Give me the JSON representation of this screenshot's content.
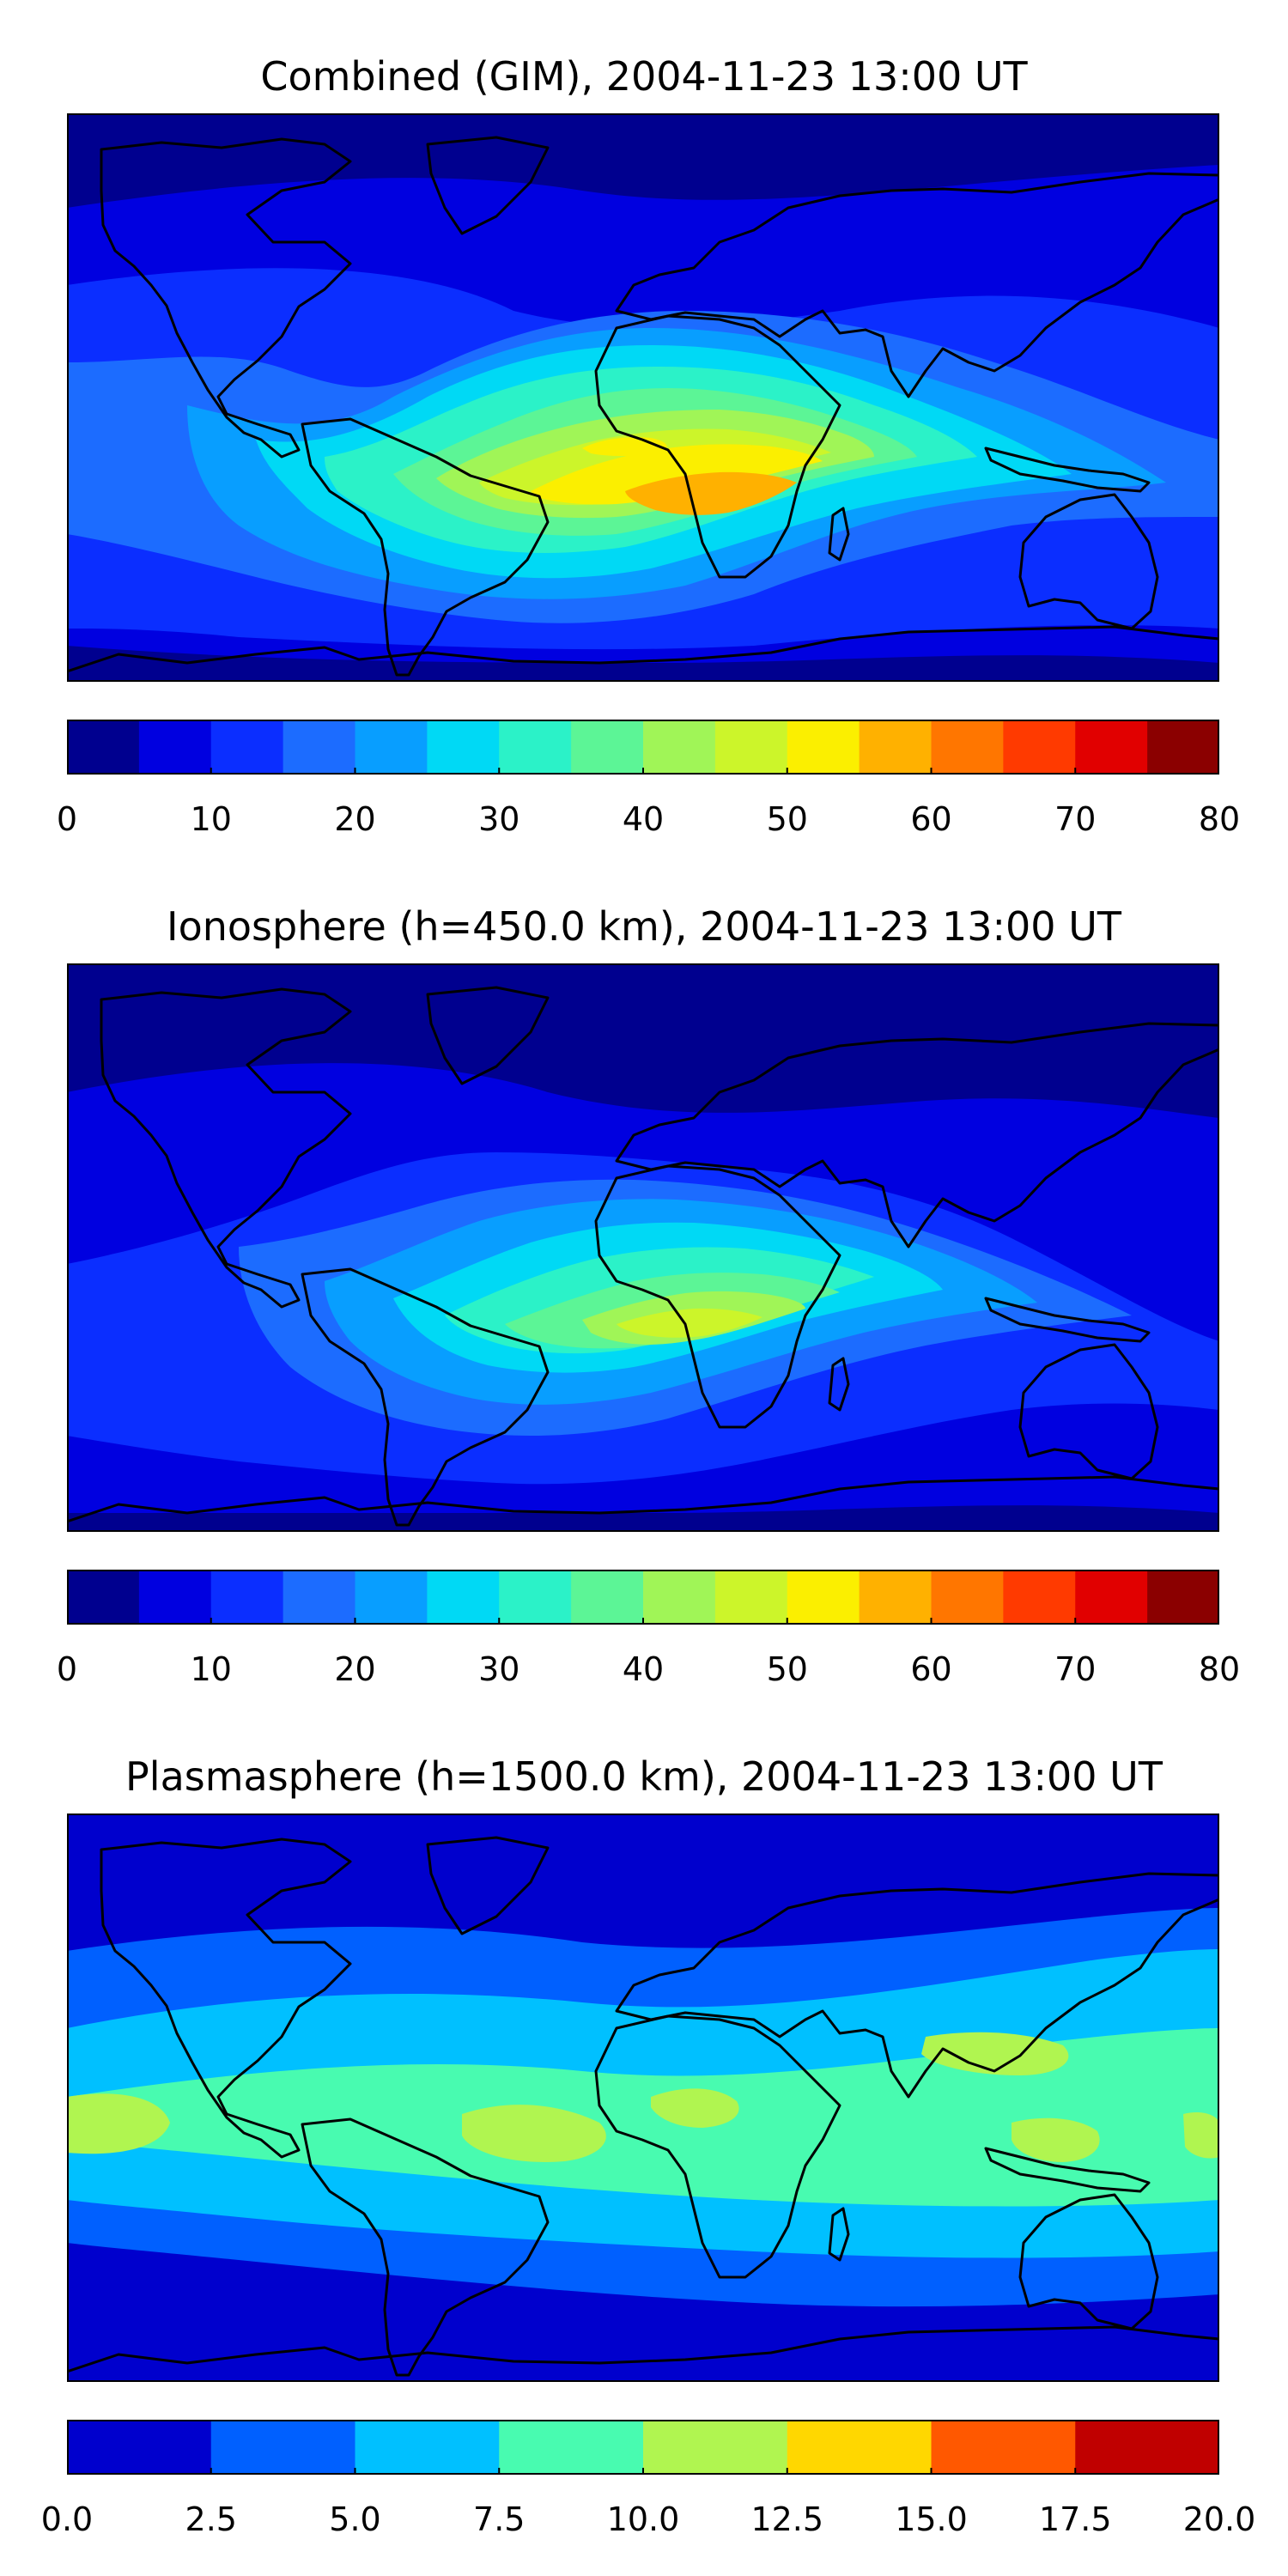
{
  "chart_data": [
    {
      "type": "heatmap",
      "title": "Combined (GIM), 2004-11-23 13:00 UT",
      "projection": "plate carree world map with coastlines",
      "colormap": "jet",
      "colorbar": {
        "orientation": "horizontal",
        "range": [
          0,
          80
        ],
        "levels": [
          0,
          5,
          10,
          15,
          20,
          25,
          30,
          35,
          40,
          45,
          50,
          55,
          60,
          65,
          70,
          75,
          80
        ],
        "tick_labels": [
          "0",
          "10",
          "20",
          "30",
          "40",
          "50",
          "60",
          "70",
          "80"
        ],
        "colors": [
          "#00008f",
          "#0000e0",
          "#0b2eff",
          "#1c6cff",
          "#089eff",
          "#00d9f5",
          "#2bf2c8",
          "#5cf596",
          "#a0f557",
          "#ccf52a",
          "#fbef00",
          "#ffb100",
          "#ff7600",
          "#ff3a00",
          "#e10000",
          "#8b0000"
        ]
      },
      "features": [
        {
          "region": "Polar caps",
          "level": 0
        },
        {
          "region": "Mid latitudes",
          "level": 10
        },
        {
          "region": "Low-latitude band over Atlantic and Indian Ocean",
          "level": 30
        },
        {
          "region": "Over Africa and equatorial Atlantic",
          "level": 50
        },
        {
          "region": "Peak over central-southern Africa",
          "level": 55
        }
      ]
    },
    {
      "type": "heatmap",
      "title": "Ionosphere  (h=450.0 km), 2004-11-23 13:00 UT",
      "projection": "plate carree world map with coastlines",
      "colormap": "jet",
      "colorbar": {
        "orientation": "horizontal",
        "range": [
          0,
          80
        ],
        "levels": [
          0,
          5,
          10,
          15,
          20,
          25,
          30,
          35,
          40,
          45,
          50,
          55,
          60,
          65,
          70,
          75,
          80
        ],
        "tick_labels": [
          "0",
          "10",
          "20",
          "30",
          "40",
          "50",
          "60",
          "70",
          "80"
        ],
        "colors": [
          "#00008f",
          "#0000e0",
          "#0b2eff",
          "#1c6cff",
          "#089eff",
          "#00d9f5",
          "#2bf2c8",
          "#5cf596",
          "#a0f557",
          "#ccf52a",
          "#fbef00",
          "#ffb100",
          "#ff7600",
          "#ff3a00",
          "#e10000",
          "#8b0000"
        ]
      },
      "features": [
        {
          "region": "Polar caps and Pacific night side",
          "level": 0
        },
        {
          "region": "Mid latitudes",
          "level": 10
        },
        {
          "region": "Low-latitude band",
          "level": 25
        },
        {
          "region": "Over Africa",
          "level": 45
        },
        {
          "region": "Peak over southern Africa",
          "level": 50
        }
      ]
    },
    {
      "type": "heatmap",
      "title": "Plasmasphere (h=1500.0 km), 2004-11-23 13:00 UT",
      "projection": "plate carree world map with coastlines",
      "colormap": "jet",
      "colorbar": {
        "orientation": "horizontal",
        "range": [
          0.0,
          20.0
        ],
        "levels": [
          0.0,
          2.5,
          5.0,
          7.5,
          10.0,
          12.5,
          15.0,
          17.5,
          20.0
        ],
        "tick_labels": [
          "0.0",
          "2.5",
          "5.0",
          "7.5",
          "10.0",
          "12.5",
          "15.0",
          "17.5",
          "20.0"
        ],
        "colors": [
          "#0000cd",
          "#0060ff",
          "#00c0ff",
          "#48fbb0",
          "#b0f550",
          "#ffd700",
          "#ff5800",
          "#c00000"
        ]
      },
      "features": [
        {
          "region": "High latitudes",
          "level": 0.0
        },
        {
          "region": "Mid latitudes",
          "level": 2.5
        },
        {
          "region": "Sub-tropics",
          "level": 5.0
        },
        {
          "region": "Equatorial band",
          "level": 7.5
        },
        {
          "region": "Peaks over South America, Africa, East Asia and Maritime Continent",
          "level": 10.0
        }
      ]
    }
  ]
}
